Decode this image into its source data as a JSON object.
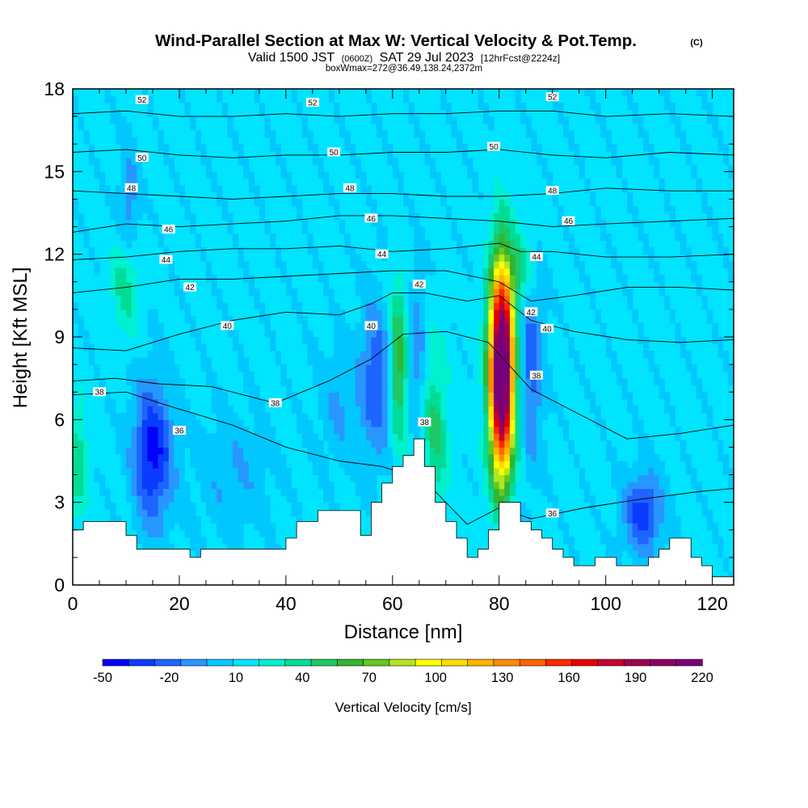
{
  "chart_data": {
    "type": "heatmap",
    "title": "Wind-Parallel Section at Max W: Vertical Velocity & Pot.Temp.",
    "title_mark": "(C)",
    "subtitle": {
      "valid": "Valid 1500 JST",
      "utc": "(0600Z)",
      "date": "SAT 29 Jul 2023",
      "forecast": "[12hrFcst@2224z]"
    },
    "boxinfo": "boxWmax=272@36.49,138.24,2372m",
    "xlabel": "Distance [nm]",
    "ylabel": "Height [Kft MSL]",
    "xlim": [
      0,
      124
    ],
    "ylim": [
      0,
      18
    ],
    "xticks": [
      0,
      20,
      40,
      60,
      80,
      100,
      120
    ],
    "yticks": [
      0,
      3,
      6,
      9,
      12,
      15,
      18
    ],
    "colorbar": {
      "label": "Vertical Velocity [cm/s]",
      "tick_labels": [
        "-50",
        "-20",
        "10",
        "40",
        "70",
        "100",
        "130",
        "160",
        "190",
        "220"
      ],
      "colors": [
        "#0000ff",
        "#0a3cff",
        "#1e64ff",
        "#2896ff",
        "#00c8ff",
        "#00e8ff",
        "#00f0d0",
        "#00dc96",
        "#1ec864",
        "#32b432",
        "#64c81e",
        "#b4e61e",
        "#ffff00",
        "#ffdc00",
        "#ffb400",
        "#ff8c00",
        "#ff6400",
        "#ff2800",
        "#e60000",
        "#c80032",
        "#a00050",
        "#8c0064",
        "#780078"
      ]
    },
    "terrain_profile": {
      "x": [
        0,
        2,
        8,
        10,
        12,
        22,
        24,
        40,
        42,
        46,
        52,
        54,
        56,
        58,
        60,
        62,
        64,
        66,
        68,
        70,
        72,
        74,
        76,
        78,
        80,
        82,
        84,
        86,
        88,
        90,
        92,
        94,
        96,
        98,
        102,
        104,
        108,
        110,
        112,
        114,
        116,
        118,
        120,
        122,
        124
      ],
      "y": [
        2.0,
        2.3,
        2.3,
        1.8,
        1.3,
        1.0,
        1.3,
        1.7,
        2.3,
        2.7,
        2.7,
        1.8,
        3.0,
        3.7,
        4.3,
        4.7,
        5.3,
        4.3,
        3.0,
        2.3,
        1.7,
        1.0,
        1.3,
        2.0,
        3.0,
        3.0,
        2.3,
        2.0,
        1.7,
        1.3,
        1.0,
        0.7,
        0.7,
        1.0,
        0.7,
        0.7,
        1.0,
        1.3,
        1.7,
        1.7,
        1.0,
        0.7,
        0.3,
        0.3,
        0.3
      ]
    },
    "vertical_velocity_features": [
      {
        "x": 80.5,
        "z": 7.8,
        "sx": 1.6,
        "sz": 2.6,
        "value": 250
      },
      {
        "x": 61.0,
        "z": 8.0,
        "sx": 1.2,
        "sz": 2.0,
        "value": 55
      },
      {
        "x": 68.0,
        "z": 5.5,
        "sx": 1.6,
        "sz": 2.0,
        "value": 35
      },
      {
        "x": 84.5,
        "z": 11.5,
        "sx": 1.6,
        "sz": 1.0,
        "value": 30
      },
      {
        "x": 10.0,
        "z": 11.0,
        "sx": 1.8,
        "sz": 1.4,
        "value": 30
      },
      {
        "x": 1.0,
        "z": 4.5,
        "sx": 1.2,
        "sz": 1.5,
        "value": 30
      },
      {
        "x": 15.0,
        "z": 4.8,
        "sx": 2.6,
        "sz": 1.8,
        "value": -55
      },
      {
        "x": 10.5,
        "z": 13.5,
        "sx": 1.4,
        "sz": 1.6,
        "value": -25
      },
      {
        "x": 57.0,
        "z": 7.5,
        "sx": 2.2,
        "sz": 2.0,
        "value": -35
      },
      {
        "x": 64.5,
        "z": 8.5,
        "sx": 1.0,
        "sz": 2.0,
        "value": -25
      },
      {
        "x": 86.0,
        "z": 8.0,
        "sx": 1.6,
        "sz": 2.5,
        "value": -35
      },
      {
        "x": 107.0,
        "z": 2.6,
        "sx": 2.6,
        "sz": 1.0,
        "value": -45
      },
      {
        "x": 30.0,
        "z": 4.0,
        "sx": 5.0,
        "sz": 1.5,
        "value": -15
      },
      {
        "x": 50.0,
        "z": 6.5,
        "sx": 3.0,
        "sz": 1.5,
        "value": -15
      }
    ],
    "isentropes": [
      {
        "label": "36",
        "points": [
          [
            0,
            6.9
          ],
          [
            10,
            7.0
          ],
          [
            18,
            6.5
          ],
          [
            30,
            5.8
          ],
          [
            40,
            5.0
          ],
          [
            50,
            4.5
          ],
          [
            58,
            4.3
          ],
          [
            66,
            3.8
          ],
          [
            74,
            2.2
          ],
          [
            80,
            2.8
          ],
          [
            86,
            2.4
          ],
          [
            96,
            2.8
          ],
          [
            106,
            3.1
          ],
          [
            118,
            3.4
          ],
          [
            124,
            3.5
          ]
        ]
      },
      {
        "label": "38",
        "points": [
          [
            0,
            7.4
          ],
          [
            8,
            7.5
          ],
          [
            16,
            7.3
          ],
          [
            26,
            7.2
          ],
          [
            38,
            6.6
          ],
          [
            48,
            7.4
          ],
          [
            56,
            8.2
          ],
          [
            62,
            9.1
          ],
          [
            70,
            9.2
          ],
          [
            78,
            8.8
          ],
          [
            86,
            7.1
          ],
          [
            94,
            6.3
          ],
          [
            104,
            5.3
          ],
          [
            114,
            5.5
          ],
          [
            124,
            5.8
          ]
        ]
      },
      {
        "label": "40",
        "points": [
          [
            0,
            8.6
          ],
          [
            10,
            8.5
          ],
          [
            20,
            9.1
          ],
          [
            30,
            9.6
          ],
          [
            40,
            9.9
          ],
          [
            50,
            9.8
          ],
          [
            56,
            10.2
          ],
          [
            60,
            10.6
          ],
          [
            66,
            10.6
          ],
          [
            74,
            10.3
          ],
          [
            80,
            10.5
          ],
          [
            86,
            9.6
          ],
          [
            94,
            9.2
          ],
          [
            104,
            8.9
          ],
          [
            114,
            8.8
          ],
          [
            124,
            8.9
          ]
        ]
      },
      {
        "label": "42",
        "points": [
          [
            0,
            10.6
          ],
          [
            10,
            10.8
          ],
          [
            20,
            11.1
          ],
          [
            30,
            11.1
          ],
          [
            40,
            11.2
          ],
          [
            50,
            11.3
          ],
          [
            60,
            11.4
          ],
          [
            70,
            11.4
          ],
          [
            80,
            11.0
          ],
          [
            86,
            10.3
          ],
          [
            94,
            10.5
          ],
          [
            104,
            10.8
          ],
          [
            114,
            10.8
          ],
          [
            124,
            10.7
          ]
        ]
      },
      {
        "label": "44",
        "points": [
          [
            0,
            11.8
          ],
          [
            10,
            11.9
          ],
          [
            20,
            12.1
          ],
          [
            30,
            12.2
          ],
          [
            40,
            12.2
          ],
          [
            50,
            12.3
          ],
          [
            60,
            12.1
          ],
          [
            70,
            12.2
          ],
          [
            80,
            12.4
          ],
          [
            84,
            12.1
          ],
          [
            90,
            12.1
          ],
          [
            100,
            11.9
          ],
          [
            112,
            11.9
          ],
          [
            124,
            12.0
          ]
        ]
      },
      {
        "label": "46",
        "points": [
          [
            0,
            12.8
          ],
          [
            10,
            13.1
          ],
          [
            20,
            13.0
          ],
          [
            30,
            13.1
          ],
          [
            40,
            13.2
          ],
          [
            50,
            13.4
          ],
          [
            60,
            13.4
          ],
          [
            70,
            13.3
          ],
          [
            80,
            13.2
          ],
          [
            90,
            13.0
          ],
          [
            100,
            13.1
          ],
          [
            112,
            13.2
          ],
          [
            124,
            13.3
          ]
        ]
      },
      {
        "label": "48",
        "points": [
          [
            0,
            14.3
          ],
          [
            10,
            14.2
          ],
          [
            20,
            14.1
          ],
          [
            30,
            14.0
          ],
          [
            40,
            14.1
          ],
          [
            50,
            14.2
          ],
          [
            60,
            14.2
          ],
          [
            70,
            14.1
          ],
          [
            80,
            14.1
          ],
          [
            90,
            14.2
          ],
          [
            100,
            14.4
          ],
          [
            112,
            14.3
          ],
          [
            124,
            14.3
          ]
        ]
      },
      {
        "label": "50",
        "points": [
          [
            0,
            15.7
          ],
          [
            10,
            15.8
          ],
          [
            20,
            15.6
          ],
          [
            30,
            15.5
          ],
          [
            40,
            15.6
          ],
          [
            50,
            15.6
          ],
          [
            60,
            15.7
          ],
          [
            70,
            15.7
          ],
          [
            80,
            15.8
          ],
          [
            90,
            15.6
          ],
          [
            100,
            15.5
          ],
          [
            112,
            15.7
          ],
          [
            124,
            15.6
          ]
        ]
      },
      {
        "label": "52",
        "points": [
          [
            0,
            17.1
          ],
          [
            10,
            17.2
          ],
          [
            20,
            17.0
          ],
          [
            30,
            17.0
          ],
          [
            40,
            17.1
          ],
          [
            50,
            17.0
          ],
          [
            60,
            17.1
          ],
          [
            70,
            17.1
          ],
          [
            80,
            17.2
          ],
          [
            90,
            17.2
          ],
          [
            100,
            17.0
          ],
          [
            112,
            17.1
          ],
          [
            124,
            17.0
          ]
        ]
      }
    ],
    "contour_labels": [
      {
        "text": "52",
        "x": 13,
        "y": 17.6
      },
      {
        "text": "52",
        "x": 45,
        "y": 17.5
      },
      {
        "text": "52",
        "x": 90,
        "y": 17.7
      },
      {
        "text": "50",
        "x": 13,
        "y": 15.5
      },
      {
        "text": "50",
        "x": 49,
        "y": 15.7
      },
      {
        "text": "50",
        "x": 79,
        "y": 15.9
      },
      {
        "text": "48",
        "x": 11,
        "y": 14.4
      },
      {
        "text": "48",
        "x": 52,
        "y": 14.4
      },
      {
        "text": "48",
        "x": 90,
        "y": 14.3
      },
      {
        "text": "46",
        "x": 18,
        "y": 12.9
      },
      {
        "text": "46",
        "x": 56,
        "y": 13.3
      },
      {
        "text": "46",
        "x": 93,
        "y": 13.2
      },
      {
        "text": "44",
        "x": 17.5,
        "y": 11.8
      },
      {
        "text": "44",
        "x": 58,
        "y": 12.0
      },
      {
        "text": "44",
        "x": 87,
        "y": 11.9
      },
      {
        "text": "42",
        "x": 22,
        "y": 10.8
      },
      {
        "text": "42",
        "x": 65,
        "y": 10.9
      },
      {
        "text": "42",
        "x": 86,
        "y": 9.9
      },
      {
        "text": "40",
        "x": 29,
        "y": 9.4
      },
      {
        "text": "40",
        "x": 56,
        "y": 9.4
      },
      {
        "text": "40",
        "x": 89,
        "y": 9.3
      },
      {
        "text": "38",
        "x": 5,
        "y": 7.0
      },
      {
        "text": "38",
        "x": 38,
        "y": 6.6
      },
      {
        "text": "38",
        "x": 66,
        "y": 5.9
      },
      {
        "text": "38",
        "x": 87,
        "y": 7.6
      },
      {
        "text": "36",
        "x": 20,
        "y": 5.6
      },
      {
        "text": "36",
        "x": 90,
        "y": 2.6
      }
    ]
  }
}
